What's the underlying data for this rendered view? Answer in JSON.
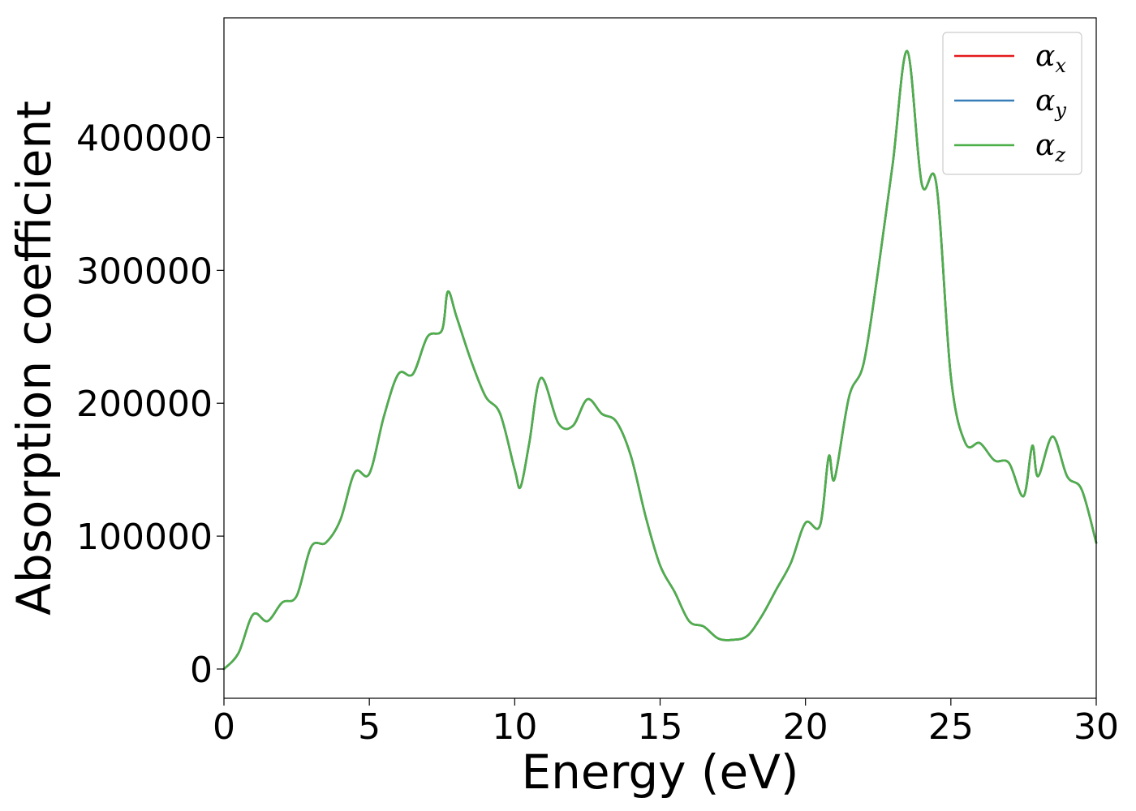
{
  "chart_data": {
    "type": "line",
    "xlabel": "Energy (eV)",
    "ylabel": "Absorption coefficient",
    "xlim": [
      0,
      30
    ],
    "ylim": [
      -22000,
      490000
    ],
    "xticks": [
      0,
      5,
      10,
      15,
      20,
      25,
      30
    ],
    "xtick_labels": [
      "0",
      "5",
      "10",
      "15",
      "20",
      "25",
      "30"
    ],
    "yticks": [
      0,
      100000,
      200000,
      300000,
      400000
    ],
    "ytick_labels": [
      "0",
      "100000",
      "200000",
      "300000",
      "400000"
    ],
    "grid": false,
    "legend_position": "top-right",
    "colors": {
      "alpha_x": "#e41a1c",
      "alpha_y": "#377eb8",
      "alpha_z": "#4daf4a"
    },
    "x": [
      0,
      0.5,
      1.0,
      1.5,
      2.0,
      2.5,
      3.0,
      3.5,
      4.0,
      4.5,
      5.0,
      5.5,
      6.0,
      6.5,
      7.0,
      7.5,
      7.7,
      8.0,
      8.5,
      9.0,
      9.5,
      10.0,
      10.2,
      10.5,
      10.9,
      11.5,
      12.0,
      12.5,
      13.0,
      13.5,
      14.0,
      14.5,
      15.0,
      15.5,
      16.0,
      16.5,
      17.0,
      17.5,
      18.0,
      18.5,
      19.0,
      19.5,
      20.0,
      20.5,
      20.8,
      21.0,
      21.5,
      22.0,
      22.5,
      23.0,
      23.5,
      24.0,
      24.5,
      25.0,
      25.5,
      26.0,
      26.5,
      27.0,
      27.5,
      27.8,
      28.0,
      28.5,
      29.0,
      29.5,
      30.0
    ],
    "series": [
      {
        "name": "α_x",
        "values": [
          0,
          12000,
          41000,
          36000,
          50000,
          55000,
          92000,
          95000,
          112000,
          148000,
          147000,
          190000,
          222000,
          222000,
          250000,
          255000,
          284000,
          265000,
          232000,
          205000,
          192000,
          150000,
          137000,
          170000,
          219000,
          185000,
          183000,
          203000,
          192000,
          186000,
          160000,
          115000,
          78000,
          58000,
          36000,
          32000,
          23000,
          22000,
          25000,
          40000,
          60000,
          80000,
          110000,
          108000,
          160000,
          143000,
          205000,
          230000,
          300000,
          380000,
          465000,
          365000,
          365000,
          220000,
          170000,
          170000,
          157000,
          155000,
          130000,
          168000,
          145000,
          175000,
          145000,
          135000,
          95000
        ]
      },
      {
        "name": "α_y",
        "values": [
          0,
          12000,
          41000,
          36000,
          50000,
          55000,
          92000,
          95000,
          112000,
          148000,
          147000,
          190000,
          222000,
          222000,
          250000,
          255000,
          284000,
          265000,
          232000,
          205000,
          192000,
          150000,
          137000,
          170000,
          219000,
          185000,
          183000,
          203000,
          192000,
          186000,
          160000,
          115000,
          78000,
          58000,
          36000,
          32000,
          23000,
          22000,
          25000,
          40000,
          60000,
          80000,
          110000,
          108000,
          160000,
          143000,
          205000,
          230000,
          300000,
          380000,
          465000,
          365000,
          365000,
          220000,
          170000,
          170000,
          157000,
          155000,
          130000,
          168000,
          145000,
          175000,
          145000,
          135000,
          95000
        ]
      },
      {
        "name": "α_z",
        "values": [
          0,
          12000,
          41000,
          36000,
          50000,
          55000,
          92000,
          95000,
          112000,
          148000,
          147000,
          190000,
          222000,
          222000,
          250000,
          255000,
          284000,
          265000,
          232000,
          205000,
          192000,
          150000,
          137000,
          170000,
          219000,
          185000,
          183000,
          203000,
          192000,
          186000,
          160000,
          115000,
          78000,
          58000,
          36000,
          32000,
          23000,
          22000,
          25000,
          40000,
          60000,
          80000,
          110000,
          108000,
          160000,
          143000,
          205000,
          230000,
          300000,
          380000,
          465000,
          365000,
          365000,
          220000,
          170000,
          170000,
          157000,
          155000,
          130000,
          168000,
          145000,
          175000,
          145000,
          135000,
          95000
        ]
      }
    ],
    "legend": [
      {
        "symbol": "α",
        "sub": "x",
        "color_key": "alpha_x"
      },
      {
        "symbol": "α",
        "sub": "y",
        "color_key": "alpha_y"
      },
      {
        "symbol": "α",
        "sub": "z",
        "color_key": "alpha_z"
      }
    ]
  }
}
